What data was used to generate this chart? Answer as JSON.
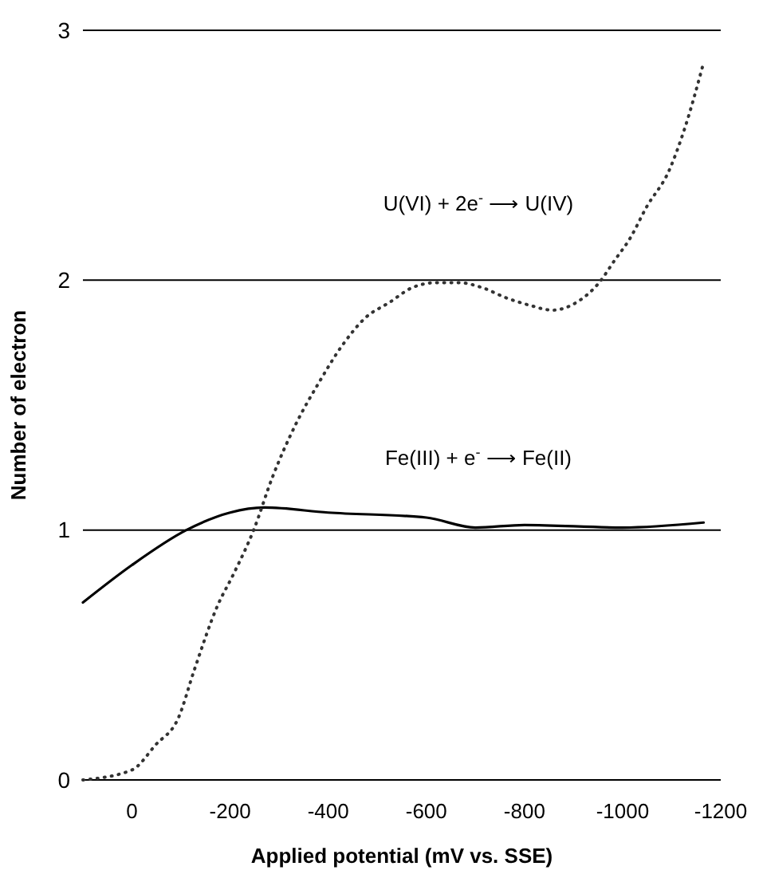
{
  "chart_data": {
    "type": "line",
    "xlabel": "Applied potential (mV vs. SSE)",
    "ylabel": "Number of electron",
    "xlim": [
      100,
      -1200
    ],
    "ylim": [
      0,
      3
    ],
    "xticks": [
      0,
      -200,
      -400,
      -600,
      -800,
      -1000,
      -1200
    ],
    "yticks": [
      0,
      1,
      2,
      3
    ],
    "grid": "y",
    "marker": "none",
    "series": [
      {
        "color": "#000000",
        "line_style": "solid",
        "x": [
          100,
          0,
          -111,
          -200,
          -270,
          -400,
          -600,
          -700,
          -800,
          -1000,
          -1165
        ],
        "values": [
          0.71,
          0.86,
          1.0,
          1.07,
          1.09,
          1.07,
          1.05,
          1.01,
          1.02,
          1.01,
          1.03
        ]
      },
      {
        "color": "#333333",
        "line_style": "dotted",
        "x": [
          100,
          0,
          -48,
          -95,
          -127,
          -175,
          -206,
          -248,
          -286,
          -333,
          -381,
          -429,
          -476,
          -524,
          -571,
          -619,
          -667,
          -714,
          -762,
          -810,
          -857,
          -905,
          -952,
          -984,
          -1016,
          -1048,
          -1095,
          -1127,
          -1165
        ],
        "values": [
          0.0,
          0.04,
          0.14,
          0.25,
          0.44,
          0.7,
          0.82,
          1.0,
          1.21,
          1.42,
          1.59,
          1.74,
          1.85,
          1.91,
          1.97,
          1.99,
          1.99,
          1.97,
          1.93,
          1.9,
          1.88,
          1.91,
          1.99,
          2.08,
          2.17,
          2.29,
          2.44,
          2.61,
          2.87
        ]
      }
    ],
    "annotations": [
      "U(VI) + 2e$^{-}$ ⟶ U(IV)",
      "Fe(III) + e$^{-}$ ⟶ Fe(II)"
    ]
  }
}
